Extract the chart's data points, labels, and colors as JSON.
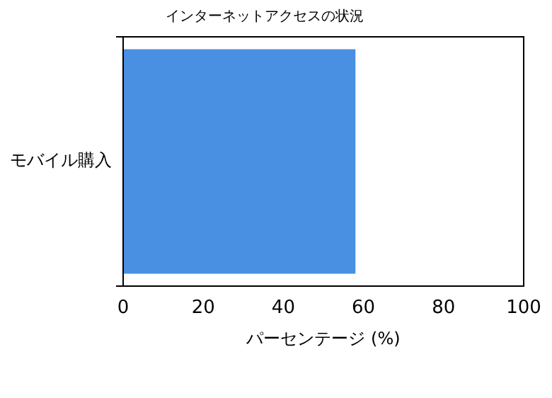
{
  "chart_data": {
    "type": "bar",
    "orientation": "horizontal",
    "title": "インターネットアクセスの状況",
    "xlabel": "パーセンテージ (%)",
    "categories": [
      "モバイル購入"
    ],
    "values": [
      58
    ],
    "color": "#4a90e2",
    "xlim": [
      0,
      100
    ],
    "xticks": [
      0,
      20,
      40,
      60,
      80,
      100
    ],
    "grid": false,
    "legend": false
  }
}
